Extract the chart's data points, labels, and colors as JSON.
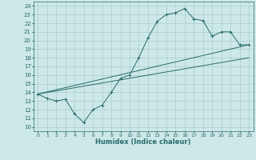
{
  "xlabel": "Humidex (Indice chaleur)",
  "bg_color": "#cde8e8",
  "grid_color": "#aacccc",
  "line_color": "#2a6b6b",
  "xlim": [
    -0.5,
    23.5
  ],
  "ylim": [
    9.5,
    24.5
  ],
  "xticks": [
    0,
    1,
    2,
    3,
    4,
    5,
    6,
    7,
    8,
    9,
    10,
    11,
    12,
    13,
    14,
    15,
    16,
    17,
    18,
    19,
    20,
    21,
    22,
    23
  ],
  "yticks": [
    10,
    11,
    12,
    13,
    14,
    15,
    16,
    17,
    18,
    19,
    20,
    21,
    22,
    23,
    24
  ],
  "line1_x": [
    0,
    1,
    2,
    3,
    4,
    5,
    6,
    7,
    8,
    9,
    10,
    11,
    12,
    13,
    14,
    15,
    16,
    17,
    18,
    19,
    20,
    21,
    22,
    23
  ],
  "line1_y": [
    13.8,
    13.3,
    13.0,
    13.2,
    11.5,
    10.5,
    12.0,
    12.5,
    14.0,
    15.6,
    16.0,
    18.0,
    20.3,
    22.2,
    23.0,
    23.2,
    23.7,
    22.5,
    22.3,
    20.5,
    21.0,
    21.0,
    19.5,
    19.5
  ],
  "line2_x": [
    0,
    23
  ],
  "line2_y": [
    13.8,
    19.5
  ],
  "line3_x": [
    0,
    23
  ],
  "line3_y": [
    13.8,
    18.0
  ],
  "xlabel_fontsize": 6,
  "tick_fontsize": 5
}
